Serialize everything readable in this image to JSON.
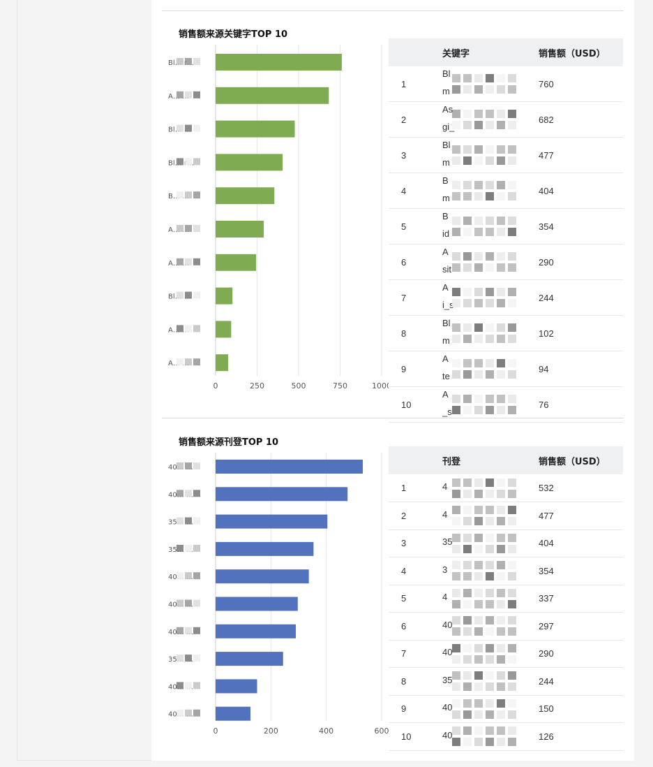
{
  "keyword_section": {
    "title": "销售额来源关键字TOP 10",
    "table": {
      "headers": [
        "",
        "关键字",
        "销售额（USD）"
      ],
      "rows": [
        {
          "rank": "1",
          "keyword": "Bl",
          "keyword_line2": "m",
          "sales": "760"
        },
        {
          "rank": "2",
          "keyword": "As",
          "keyword_line2": "gi_",
          "sales": "682"
        },
        {
          "rank": "3",
          "keyword": "Bl",
          "keyword_line2": "m",
          "sales": "477"
        },
        {
          "rank": "4",
          "keyword": "B",
          "keyword_line2": "m",
          "sales": "404"
        },
        {
          "rank": "5",
          "keyword": "B",
          "keyword_line2": "id",
          "sales": "354"
        },
        {
          "rank": "6",
          "keyword": "A",
          "keyword_line2": "sit",
          "sales": "290"
        },
        {
          "rank": "7",
          "keyword": "A",
          "keyword_line2": "i_s",
          "sales": "244"
        },
        {
          "rank": "8",
          "keyword": "Bl",
          "keyword_line2": "m",
          "sales": "102"
        },
        {
          "rank": "9",
          "keyword": "A",
          "keyword_line2": "te",
          "sales": "94"
        },
        {
          "rank": "10",
          "keyword": "A",
          "keyword_line2": "_s",
          "sales": "76"
        }
      ]
    }
  },
  "listing_section": {
    "title": "销售额来源刊登TOP 10",
    "table": {
      "headers": [
        "",
        "刊登",
        "销售额（USD）"
      ],
      "rows": [
        {
          "rank": "1",
          "listing": "4",
          "sales": "532"
        },
        {
          "rank": "2",
          "listing": "4",
          "sales": "477"
        },
        {
          "rank": "3",
          "listing": "35",
          "sales": "404"
        },
        {
          "rank": "4",
          "listing": "3",
          "sales": "354"
        },
        {
          "rank": "5",
          "listing": "4",
          "sales": "337"
        },
        {
          "rank": "6",
          "listing": "40",
          "sales": "297"
        },
        {
          "rank": "7",
          "listing": "40",
          "sales": "290"
        },
        {
          "rank": "8",
          "listing": "35",
          "sales": "244"
        },
        {
          "rank": "9",
          "listing": "40",
          "sales": "150"
        },
        {
          "rank": "10",
          "listing": "40",
          "sales": "126"
        }
      ]
    }
  },
  "colors": {
    "keyword_bar": "#7fac52",
    "listing_bar": "#5372bd",
    "grid": "#e6e6e6",
    "header_bg": "#eef0f2"
  },
  "chart_data": [
    {
      "type": "bar",
      "orientation": "horizontal",
      "title": "销售额来源关键字TOP 10",
      "categories": [
        "Bl… r…",
        "A… …",
        "Bl… …",
        "Bl… r…",
        "B… …",
        "A… …",
        "A… …",
        "Bl… …",
        "A… …",
        "A… …"
      ],
      "values": [
        760,
        682,
        477,
        404,
        354,
        290,
        244,
        102,
        94,
        76
      ],
      "xlim": [
        0,
        1000
      ],
      "xticks": [
        0,
        250,
        500,
        750,
        1000
      ],
      "grid": true,
      "color": "#7fac52"
    },
    {
      "type": "bar",
      "orientation": "horizontal",
      "title": "销售额来源刊登TOP 10",
      "categories": [
        "40… …",
        "40… …",
        "35… …",
        "35… …",
        "40… …",
        "40… …",
        "40… …",
        "35… …",
        "40… …",
        "40… …"
      ],
      "values": [
        532,
        477,
        404,
        354,
        337,
        297,
        290,
        244,
        150,
        126
      ],
      "xlim": [
        0,
        600
      ],
      "xticks": [
        0,
        200,
        400,
        600
      ],
      "grid": true,
      "color": "#5372bd"
    }
  ]
}
